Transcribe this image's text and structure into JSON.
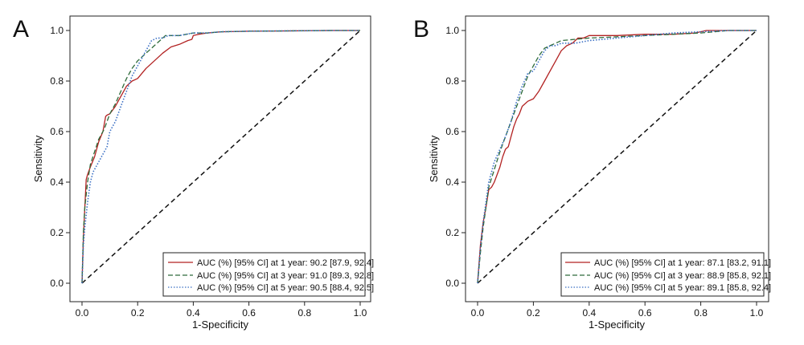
{
  "chart_data": [
    {
      "panel": "A",
      "type": "line",
      "xlabel": "1-Specificity",
      "ylabel": "Sensitivity",
      "xlim": [
        0,
        1
      ],
      "ylim": [
        0,
        1
      ],
      "x_ticks": [
        "0.0",
        "0.2",
        "0.4",
        "0.6",
        "0.8",
        "1.0"
      ],
      "y_ticks": [
        "0.0",
        "0.2",
        "0.4",
        "0.6",
        "0.8",
        "1.0"
      ],
      "grid": false,
      "legend_position": "bottom-right",
      "reference_line": {
        "x": [
          0,
          1
        ],
        "y": [
          0,
          1
        ],
        "color": "#111111",
        "style": "dashed"
      },
      "series": [
        {
          "name": "AUC (%) [95% CI] at 1 year: 90.2 [87.9, 92.4]",
          "color": "#b22222",
          "style": "solid",
          "x": [
            0.0,
            0.005,
            0.01,
            0.015,
            0.02,
            0.03,
            0.045,
            0.06,
            0.075,
            0.085,
            0.09,
            0.1,
            0.12,
            0.14,
            0.16,
            0.18,
            0.2,
            0.23,
            0.26,
            0.29,
            0.32,
            0.35,
            0.38,
            0.395,
            0.4,
            0.42,
            0.45,
            0.5,
            0.6,
            0.7,
            0.8,
            0.9,
            1.0
          ],
          "y": [
            0.0,
            0.18,
            0.3,
            0.41,
            0.43,
            0.46,
            0.5,
            0.56,
            0.6,
            0.66,
            0.665,
            0.67,
            0.7,
            0.74,
            0.78,
            0.8,
            0.81,
            0.85,
            0.88,
            0.91,
            0.935,
            0.945,
            0.96,
            0.965,
            0.98,
            0.985,
            0.99,
            0.995,
            0.997,
            0.998,
            0.999,
            1.0,
            1.0
          ]
        },
        {
          "name": "AUC (%) [95% CI] at 3 year: 91.0 [89.3, 92.8]",
          "color": "#2e6b3a",
          "style": "dashed",
          "x": [
            0.0,
            0.005,
            0.01,
            0.02,
            0.03,
            0.045,
            0.06,
            0.08,
            0.1,
            0.12,
            0.14,
            0.16,
            0.18,
            0.2,
            0.22,
            0.24,
            0.26,
            0.28,
            0.3,
            0.35,
            0.4,
            0.45,
            0.5,
            0.6,
            0.7,
            0.8,
            0.9,
            1.0
          ],
          "y": [
            0.0,
            0.2,
            0.3,
            0.4,
            0.47,
            0.52,
            0.57,
            0.61,
            0.67,
            0.71,
            0.76,
            0.81,
            0.85,
            0.88,
            0.9,
            0.92,
            0.94,
            0.96,
            0.98,
            0.98,
            0.99,
            0.99,
            0.995,
            0.997,
            0.998,
            0.999,
            1.0,
            1.0
          ]
        },
        {
          "name": "AUC (%) [95% CI] at 5 year: 90.5 [88.4, 92.5]",
          "color": "#3a6fc4",
          "style": "dotted",
          "x": [
            0.0,
            0.005,
            0.01,
            0.02,
            0.03,
            0.04,
            0.05,
            0.07,
            0.09,
            0.1,
            0.12,
            0.14,
            0.16,
            0.18,
            0.2,
            0.22,
            0.24,
            0.25,
            0.27,
            0.29,
            0.31,
            0.35,
            0.4,
            0.45,
            0.5,
            0.6,
            0.7,
            0.8,
            0.9,
            1.0
          ],
          "y": [
            0.0,
            0.15,
            0.22,
            0.32,
            0.4,
            0.44,
            0.46,
            0.5,
            0.54,
            0.6,
            0.64,
            0.7,
            0.76,
            0.82,
            0.86,
            0.9,
            0.94,
            0.96,
            0.97,
            0.97,
            0.98,
            0.98,
            0.99,
            0.99,
            0.995,
            0.997,
            0.998,
            0.999,
            1.0,
            1.0
          ]
        }
      ]
    },
    {
      "panel": "B",
      "type": "line",
      "xlabel": "1-Specificity",
      "ylabel": "Sensitivity",
      "xlim": [
        0,
        1
      ],
      "ylim": [
        0,
        1
      ],
      "x_ticks": [
        "0.0",
        "0.2",
        "0.4",
        "0.6",
        "0.8",
        "1.0"
      ],
      "y_ticks": [
        "0.0",
        "0.2",
        "0.4",
        "0.6",
        "0.8",
        "1.0"
      ],
      "grid": false,
      "legend_position": "bottom-right",
      "reference_line": {
        "x": [
          0,
          1
        ],
        "y": [
          0,
          1
        ],
        "color": "#111111",
        "style": "dashed"
      },
      "series": [
        {
          "name": "AUC (%) [95% CI] at 1 year: 87.1 [83.2, 91.1]",
          "color": "#b22222",
          "style": "solid",
          "x": [
            0.0,
            0.01,
            0.02,
            0.03,
            0.04,
            0.05,
            0.06,
            0.07,
            0.08,
            0.09,
            0.1,
            0.11,
            0.12,
            0.13,
            0.14,
            0.15,
            0.16,
            0.18,
            0.2,
            0.22,
            0.24,
            0.26,
            0.28,
            0.3,
            0.32,
            0.34,
            0.36,
            0.38,
            0.4,
            0.5,
            0.6,
            0.7,
            0.78,
            0.82,
            0.9,
            1.0
          ],
          "y": [
            0.0,
            0.15,
            0.24,
            0.3,
            0.37,
            0.38,
            0.4,
            0.43,
            0.46,
            0.5,
            0.53,
            0.54,
            0.58,
            0.62,
            0.65,
            0.67,
            0.7,
            0.72,
            0.73,
            0.76,
            0.8,
            0.84,
            0.88,
            0.92,
            0.94,
            0.95,
            0.97,
            0.97,
            0.98,
            0.98,
            0.985,
            0.985,
            0.99,
            1.0,
            1.0,
            1.0
          ]
        },
        {
          "name": "AUC (%) [95% CI] at 3 year: 88.9 [85.8, 92.1]",
          "color": "#2e6b3a",
          "style": "dashed",
          "x": [
            0.0,
            0.01,
            0.02,
            0.03,
            0.04,
            0.06,
            0.08,
            0.1,
            0.12,
            0.14,
            0.16,
            0.18,
            0.2,
            0.22,
            0.24,
            0.26,
            0.28,
            0.3,
            0.35,
            0.4,
            0.5,
            0.6,
            0.7,
            0.8,
            0.9,
            1.0
          ],
          "y": [
            0.0,
            0.12,
            0.22,
            0.3,
            0.38,
            0.45,
            0.52,
            0.58,
            0.64,
            0.7,
            0.76,
            0.82,
            0.86,
            0.9,
            0.93,
            0.94,
            0.95,
            0.96,
            0.965,
            0.97,
            0.975,
            0.98,
            0.985,
            0.99,
            1.0,
            1.0
          ]
        },
        {
          "name": "AUC (%) [95% CI] at 5 year: 89.1 [85.8, 92.4]",
          "color": "#3a6fc4",
          "style": "dotted",
          "x": [
            0.0,
            0.01,
            0.02,
            0.03,
            0.04,
            0.05,
            0.06,
            0.08,
            0.1,
            0.12,
            0.14,
            0.16,
            0.18,
            0.2,
            0.22,
            0.24,
            0.26,
            0.28,
            0.3,
            0.35,
            0.4,
            0.5,
            0.6,
            0.7,
            0.8,
            0.9,
            1.0
          ],
          "y": [
            0.0,
            0.14,
            0.24,
            0.32,
            0.4,
            0.44,
            0.48,
            0.53,
            0.58,
            0.64,
            0.72,
            0.78,
            0.83,
            0.84,
            0.88,
            0.92,
            0.94,
            0.94,
            0.95,
            0.95,
            0.96,
            0.97,
            0.98,
            0.99,
            0.995,
            1.0,
            1.0
          ]
        }
      ]
    }
  ]
}
